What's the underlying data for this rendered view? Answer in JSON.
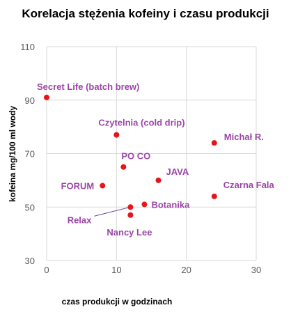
{
  "chart_data": {
    "type": "scatter",
    "title": "Korelacja stężenia kofeiny i czasu produkcji",
    "xlabel": "czas produkcji w godzinach",
    "ylabel": "kofeina mg/100 ml wody",
    "xlim": [
      0,
      30
    ],
    "ylim": [
      30,
      110
    ],
    "xticks": [
      "0",
      "10",
      "20",
      "30"
    ],
    "yticks": [
      "30",
      "50",
      "70",
      "90",
      "110"
    ],
    "grid": true,
    "points": [
      {
        "label": "Secret Life (batch brew)",
        "x": 0,
        "y": 91
      },
      {
        "label": "Czytelnia (cold drip)",
        "x": 10,
        "y": 77
      },
      {
        "label": "Michał R.",
        "x": 24,
        "y": 74
      },
      {
        "label": "PO CO",
        "x": 11,
        "y": 65
      },
      {
        "label": "JAVA",
        "x": 16,
        "y": 60
      },
      {
        "label": "FORUM",
        "x": 8,
        "y": 58
      },
      {
        "label": "Czarna Fala",
        "x": 24,
        "y": 54
      },
      {
        "label": "Botanika",
        "x": 14,
        "y": 51
      },
      {
        "label": "Relax",
        "x": 12,
        "y": 50
      },
      {
        "label": "Nancy Lee",
        "x": 12,
        "y": 47
      }
    ]
  },
  "colors": {
    "marker": "#e8141b",
    "label": "#9b46a6",
    "grid": "#d9d9d9"
  }
}
